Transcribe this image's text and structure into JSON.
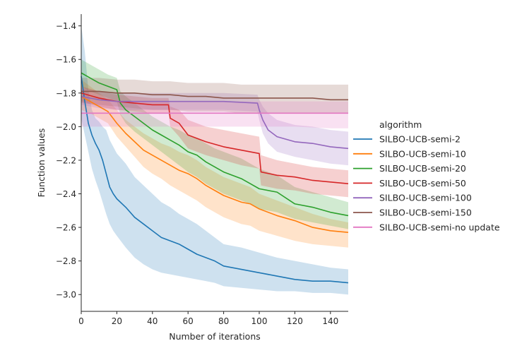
{
  "chart_data": {
    "type": "line",
    "title": "",
    "xlabel": "Number of iterations",
    "ylabel": "Function values",
    "xlim": [
      0,
      150
    ],
    "ylim": [
      -3.1,
      -1.33
    ],
    "xticks": [
      0,
      20,
      40,
      60,
      80,
      100,
      120,
      140
    ],
    "xtick_labels": [
      "0",
      "20",
      "40",
      "60",
      "80",
      "100",
      "120",
      "140"
    ],
    "yticks": [
      -1.4,
      -1.6,
      -1.8,
      -2.0,
      -2.2,
      -2.4,
      -2.6,
      -2.8,
      -3.0
    ],
    "ytick_labels": [
      "−1.4",
      "−1.6",
      "−1.8",
      "−2.0",
      "−2.2",
      "−2.4",
      "−2.6",
      "−2.8",
      "−3.0"
    ],
    "grid": false,
    "legend": {
      "title": "algorithm",
      "placement": "right-outside"
    },
    "series": [
      {
        "name": "SILBO-UCB-semi-2",
        "color": "#1f77b4",
        "x": [
          0,
          2,
          4,
          6,
          8,
          10,
          12,
          14,
          16,
          18,
          20,
          25,
          30,
          35,
          40,
          45,
          50,
          55,
          60,
          65,
          70,
          75,
          80,
          90,
          100,
          110,
          120,
          130,
          140,
          150
        ],
        "y": [
          -1.7,
          -1.85,
          -1.98,
          -2.05,
          -2.1,
          -2.14,
          -2.2,
          -2.28,
          -2.36,
          -2.4,
          -2.43,
          -2.48,
          -2.54,
          -2.58,
          -2.62,
          -2.66,
          -2.68,
          -2.7,
          -2.73,
          -2.76,
          -2.78,
          -2.8,
          -2.83,
          -2.85,
          -2.87,
          -2.89,
          -2.91,
          -2.92,
          -2.92,
          -2.93
        ],
        "lower": [
          -1.95,
          -2.05,
          -2.15,
          -2.25,
          -2.32,
          -2.38,
          -2.45,
          -2.52,
          -2.58,
          -2.62,
          -2.65,
          -2.72,
          -2.78,
          -2.82,
          -2.85,
          -2.87,
          -2.88,
          -2.89,
          -2.9,
          -2.91,
          -2.92,
          -2.93,
          -2.95,
          -2.96,
          -2.97,
          -2.98,
          -2.98,
          -2.99,
          -2.99,
          -3.0
        ],
        "upper": [
          -1.4,
          -1.55,
          -1.78,
          -1.9,
          -1.95,
          -1.97,
          -2.0,
          -2.02,
          -2.08,
          -2.12,
          -2.16,
          -2.22,
          -2.3,
          -2.35,
          -2.4,
          -2.45,
          -2.48,
          -2.52,
          -2.55,
          -2.58,
          -2.62,
          -2.66,
          -2.7,
          -2.72,
          -2.75,
          -2.78,
          -2.8,
          -2.82,
          -2.84,
          -2.85
        ]
      },
      {
        "name": "SILBO-UCB-semi-10",
        "color": "#ff7f0e",
        "x": [
          0,
          5,
          10,
          15,
          20,
          25,
          30,
          35,
          40,
          45,
          50,
          55,
          60,
          65,
          70,
          75,
          80,
          85,
          90,
          95,
          100,
          110,
          120,
          130,
          140,
          150
        ],
        "y": [
          -1.82,
          -1.85,
          -1.88,
          -1.91,
          -1.98,
          -2.04,
          -2.09,
          -2.14,
          -2.17,
          -2.2,
          -2.23,
          -2.26,
          -2.28,
          -2.31,
          -2.35,
          -2.38,
          -2.41,
          -2.43,
          -2.45,
          -2.46,
          -2.49,
          -2.53,
          -2.56,
          -2.6,
          -2.62,
          -2.63
        ],
        "lower": [
          -1.9,
          -1.92,
          -1.95,
          -1.98,
          -2.06,
          -2.12,
          -2.18,
          -2.24,
          -2.28,
          -2.31,
          -2.35,
          -2.38,
          -2.41,
          -2.44,
          -2.48,
          -2.51,
          -2.54,
          -2.56,
          -2.58,
          -2.59,
          -2.62,
          -2.65,
          -2.68,
          -2.7,
          -2.71,
          -2.72
        ],
        "upper": [
          -1.72,
          -1.76,
          -1.8,
          -1.84,
          -1.9,
          -1.96,
          -2.0,
          -2.04,
          -2.07,
          -2.1,
          -2.12,
          -2.15,
          -2.17,
          -2.2,
          -2.24,
          -2.27,
          -2.3,
          -2.32,
          -2.34,
          -2.36,
          -2.4,
          -2.44,
          -2.48,
          -2.52,
          -2.55,
          -2.57
        ]
      },
      {
        "name": "SILBO-UCB-semi-20",
        "color": "#2ca02c",
        "x": [
          0,
          5,
          10,
          15,
          20,
          22,
          25,
          30,
          35,
          40,
          45,
          50,
          55,
          60,
          65,
          70,
          75,
          80,
          85,
          90,
          95,
          100,
          110,
          120,
          130,
          140,
          150
        ],
        "y": [
          -1.68,
          -1.71,
          -1.74,
          -1.76,
          -1.78,
          -1.86,
          -1.9,
          -1.94,
          -1.98,
          -2.02,
          -2.05,
          -2.08,
          -2.11,
          -2.15,
          -2.17,
          -2.21,
          -2.24,
          -2.27,
          -2.29,
          -2.31,
          -2.34,
          -2.37,
          -2.39,
          -2.46,
          -2.48,
          -2.51,
          -2.53
        ],
        "lower": [
          -1.76,
          -1.79,
          -1.81,
          -1.83,
          -1.85,
          -1.93,
          -1.98,
          -2.03,
          -2.07,
          -2.11,
          -2.15,
          -2.19,
          -2.23,
          -2.27,
          -2.3,
          -2.34,
          -2.37,
          -2.4,
          -2.42,
          -2.44,
          -2.46,
          -2.49,
          -2.51,
          -2.55,
          -2.57,
          -2.59,
          -2.61
        ],
        "upper": [
          -1.6,
          -1.63,
          -1.66,
          -1.69,
          -1.71,
          -1.79,
          -1.82,
          -1.86,
          -1.9,
          -1.94,
          -1.97,
          -2.0,
          -2.02,
          -2.05,
          -2.07,
          -2.1,
          -2.13,
          -2.15,
          -2.17,
          -2.19,
          -2.22,
          -2.25,
          -2.29,
          -2.36,
          -2.39,
          -2.42,
          -2.45
        ]
      },
      {
        "name": "SILBO-UCB-semi-50",
        "color": "#d62728",
        "x": [
          0,
          10,
          20,
          30,
          40,
          49,
          50,
          55,
          60,
          65,
          70,
          80,
          90,
          100,
          101,
          110,
          120,
          130,
          140,
          150
        ],
        "y": [
          -1.8,
          -1.83,
          -1.85,
          -1.86,
          -1.87,
          -1.87,
          -1.95,
          -1.98,
          -2.05,
          -2.07,
          -2.09,
          -2.12,
          -2.14,
          -2.16,
          -2.27,
          -2.29,
          -2.3,
          -2.32,
          -2.33,
          -2.34
        ],
        "lower": [
          -1.85,
          -1.88,
          -1.9,
          -1.91,
          -1.92,
          -1.92,
          -2.0,
          -2.06,
          -2.13,
          -2.15,
          -2.17,
          -2.2,
          -2.23,
          -2.25,
          -2.35,
          -2.37,
          -2.38,
          -2.4,
          -2.41,
          -2.42
        ],
        "upper": [
          -1.76,
          -1.79,
          -1.81,
          -1.82,
          -1.83,
          -1.83,
          -1.88,
          -1.9,
          -1.96,
          -1.98,
          -2.0,
          -2.02,
          -2.04,
          -2.06,
          -2.17,
          -2.2,
          -2.22,
          -2.24,
          -2.25,
          -2.26
        ]
      },
      {
        "name": "SILBO-UCB-semi-100",
        "color": "#9467bd",
        "x": [
          0,
          10,
          20,
          40,
          60,
          80,
          99,
          100,
          102,
          105,
          110,
          120,
          130,
          140,
          150
        ],
        "y": [
          -1.82,
          -1.84,
          -1.85,
          -1.85,
          -1.85,
          -1.85,
          -1.86,
          -1.9,
          -1.96,
          -2.02,
          -2.06,
          -2.09,
          -2.1,
          -2.12,
          -2.13
        ],
        "lower": [
          -1.87,
          -1.89,
          -1.9,
          -1.9,
          -1.9,
          -1.9,
          -1.91,
          -1.96,
          -2.04,
          -2.1,
          -2.15,
          -2.18,
          -2.2,
          -2.22,
          -2.23
        ],
        "upper": [
          -1.77,
          -1.79,
          -1.8,
          -1.8,
          -1.8,
          -1.8,
          -1.81,
          -1.84,
          -1.88,
          -1.92,
          -1.96,
          -1.99,
          -2.0,
          -2.02,
          -2.03
        ]
      },
      {
        "name": "SILBO-UCB-semi-150",
        "color": "#8c564b",
        "x": [
          0,
          10,
          20,
          30,
          40,
          50,
          60,
          70,
          80,
          90,
          100,
          110,
          120,
          130,
          140,
          150
        ],
        "y": [
          -1.79,
          -1.79,
          -1.8,
          -1.8,
          -1.81,
          -1.81,
          -1.82,
          -1.82,
          -1.83,
          -1.83,
          -1.83,
          -1.83,
          -1.83,
          -1.83,
          -1.84,
          -1.84
        ],
        "lower": [
          -1.86,
          -1.87,
          -1.88,
          -1.89,
          -1.9,
          -1.9,
          -1.91,
          -1.91,
          -1.91,
          -1.92,
          -1.92,
          -1.92,
          -1.92,
          -1.92,
          -1.92,
          -1.92
        ],
        "upper": [
          -1.71,
          -1.71,
          -1.72,
          -1.72,
          -1.73,
          -1.73,
          -1.74,
          -1.74,
          -1.74,
          -1.75,
          -1.75,
          -1.75,
          -1.75,
          -1.75,
          -1.75,
          -1.75
        ]
      },
      {
        "name": "SILBO-UCB-semi-no update",
        "color": "#e377c2",
        "x": [
          0,
          10,
          20,
          40,
          60,
          80,
          100,
          120,
          140,
          150
        ],
        "y": [
          -1.92,
          -1.92,
          -1.92,
          -1.92,
          -1.92,
          -1.92,
          -1.92,
          -1.92,
          -1.92,
          -1.92
        ],
        "lower": [
          -2.0,
          -2.0,
          -2.0,
          -2.0,
          -2.0,
          -2.0,
          -2.0,
          -2.0,
          -2.01,
          -2.01
        ],
        "upper": [
          -1.85,
          -1.85,
          -1.85,
          -1.85,
          -1.85,
          -1.85,
          -1.85,
          -1.85,
          -1.85,
          -1.85
        ]
      }
    ]
  }
}
